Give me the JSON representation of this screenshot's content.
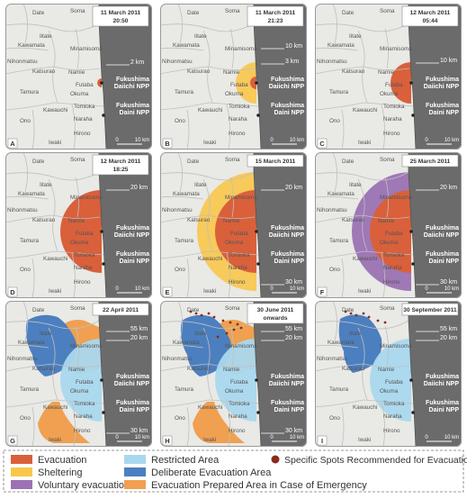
{
  "colors": {
    "evacuation": "#d9603b",
    "sheltering": "#f8c74a",
    "voluntary": "#9b72b3",
    "restricted": "#a9d8ee",
    "deliberate": "#4c7fbf",
    "prepared": "#f0a050",
    "land": "#e9e9e5",
    "sea": "#6b6b6b",
    "boundary": "#bfbfbf",
    "coast": "#555555",
    "hotspot": "#8b2a1c"
  },
  "place_names": {
    "date": "Date",
    "soma": "Soma",
    "iitate": "Iitate",
    "kawamata": "Kawamata",
    "minamisoma": "Minamisoma",
    "nihonmatsu": "Nihonmatsu",
    "katsurao": "Katsurao",
    "namie": "Namie",
    "tamura": "Tamura",
    "futaba": "Futaba",
    "okuma": "Okuma",
    "kawauchi": "Kawauchi",
    "tomioka": "Tomioka",
    "ono": "Ono",
    "naraha": "Naraha",
    "hirono": "Hirono",
    "iwaki": "Iwaki"
  },
  "npp_labels": {
    "daiichi_line1": "Fukushima",
    "daiichi_line2": "Daiichi NPP",
    "daini_line1": "Fukushima",
    "daini_line2": "Daini NPP"
  },
  "scale": {
    "zero": "0",
    "ten": "10 km"
  },
  "distances": {
    "d2": "2 km",
    "d3": "3 km",
    "d10": "10 km",
    "d20": "20 km",
    "d30": "30 km",
    "d55": "55 km"
  },
  "panels": [
    {
      "letter": "A",
      "date": "11 March 2011",
      "time": "20:50"
    },
    {
      "letter": "B",
      "date": "11 March 2011",
      "time": "21:23"
    },
    {
      "letter": "C",
      "date": "12 March 2011",
      "time": "05:44"
    },
    {
      "letter": "D",
      "date": "12 March 2011",
      "time": "18:25"
    },
    {
      "letter": "E",
      "date": "15 March 2011",
      "time": ""
    },
    {
      "letter": "F",
      "date": "25 March 2011",
      "time": ""
    },
    {
      "letter": "G",
      "date": "22 April 2011",
      "time": ""
    },
    {
      "letter": "H",
      "date": "30 June 2011",
      "time": "onwards"
    },
    {
      "letter": "I",
      "date": "30 September 2011",
      "time": ""
    }
  ],
  "legend": {
    "evacuation": "Evacuation",
    "sheltering": "Sheltering",
    "voluntary": "Voluntary evacuation",
    "restricted": "Restricted Area",
    "deliberate": "Deliberate Evacuation Area",
    "prepared": "Evacuation Prepared Area in Case of Emergency",
    "hotspots": "Specific Spots Recommended for Evacuation"
  }
}
